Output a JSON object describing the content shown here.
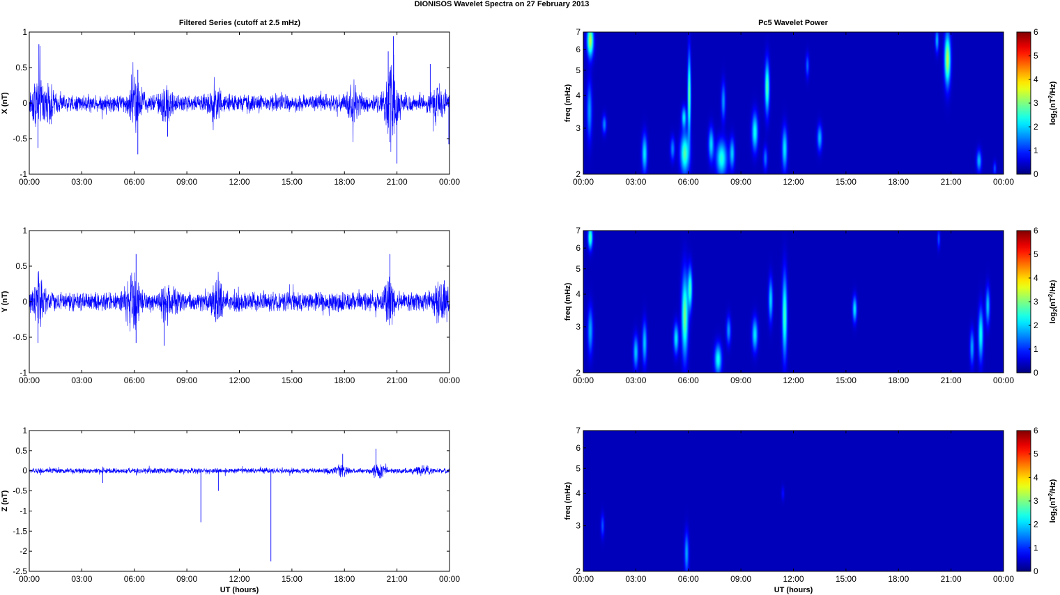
{
  "figure": {
    "title": "DIONISOS Wavelet Spectra on 27 February  2013",
    "left_column_title": "Filtered Series (cutoff at 2.5 mHz)",
    "right_column_title": "Pc5 Wavelet Power",
    "colors": {
      "trace": "#0000ff",
      "axes": "#000000",
      "colormap": "jet",
      "background_power": "#00008f"
    }
  },
  "chart_data": [
    {
      "type": "line",
      "id": "series-x",
      "ylabel": "X (nT)",
      "xlabel": "",
      "x_range_hours": [
        0,
        24
      ],
      "x_ticks": [
        "00:00",
        "03:00",
        "06:00",
        "09:00",
        "12:00",
        "15:00",
        "18:00",
        "21:00",
        "00:00"
      ],
      "ylim": [
        -1,
        1
      ],
      "y_ticks": [
        "1",
        "0.5",
        "0",
        "-0.5",
        "-1"
      ],
      "baseline_amplitude": 0.09,
      "activity": [
        {
          "t": 0.5,
          "amp": 0.22
        },
        {
          "t": 1.2,
          "amp": 0.12
        },
        {
          "t": 6.1,
          "amp": 0.25
        },
        {
          "t": 7.8,
          "amp": 0.15
        },
        {
          "t": 10.6,
          "amp": 0.12
        },
        {
          "t": 18.5,
          "amp": 0.14
        },
        {
          "t": 20.7,
          "amp": 0.42
        },
        {
          "t": 23.3,
          "amp": 0.14
        }
      ],
      "spikes": [
        {
          "t": 0.55,
          "y": 0.83
        },
        {
          "t": 0.5,
          "y": -0.63
        },
        {
          "t": 6.2,
          "y": -0.72
        },
        {
          "t": 6.2,
          "y": 0.47
        },
        {
          "t": 7.9,
          "y": -0.47
        },
        {
          "t": 20.8,
          "y": 0.94
        },
        {
          "t": 21.0,
          "y": -0.85
        },
        {
          "t": 20.5,
          "y": 0.73
        },
        {
          "t": 20.6,
          "y": -0.55
        },
        {
          "t": 22.9,
          "y": 0.55
        },
        {
          "t": 23.96,
          "y": -0.58
        }
      ]
    },
    {
      "type": "line",
      "id": "series-y",
      "ylabel": "Y (nT)",
      "xlabel": "",
      "x_range_hours": [
        0,
        24
      ],
      "x_ticks": [
        "00:00",
        "03:00",
        "06:00",
        "09:00",
        "12:00",
        "15:00",
        "18:00",
        "21:00",
        "00:00"
      ],
      "ylim": [
        -1,
        1
      ],
      "y_ticks": [
        "1",
        "0.5",
        "0",
        "-0.5",
        "-1"
      ],
      "baseline_amplitude": 0.1,
      "activity": [
        {
          "t": 0.5,
          "amp": 0.24
        },
        {
          "t": 5.9,
          "amp": 0.3
        },
        {
          "t": 7.9,
          "amp": 0.18
        },
        {
          "t": 10.8,
          "amp": 0.14
        },
        {
          "t": 20.6,
          "amp": 0.16
        },
        {
          "t": 23.5,
          "amp": 0.18
        }
      ],
      "spikes": [
        {
          "t": 0.5,
          "y": -0.58
        },
        {
          "t": 6.1,
          "y": 0.67
        },
        {
          "t": 6.1,
          "y": -0.58
        },
        {
          "t": 7.7,
          "y": -0.62
        },
        {
          "t": 20.6,
          "y": 0.67
        },
        {
          "t": 23.7,
          "y": 0.3
        }
      ]
    },
    {
      "type": "line",
      "id": "series-z",
      "ylabel": "Z (nT)",
      "xlabel": "UT (hours)",
      "x_range_hours": [
        0,
        24
      ],
      "x_ticks": [
        "00:00",
        "03:00",
        "06:00",
        "09:00",
        "12:00",
        "15:00",
        "18:00",
        "21:00",
        "00:00"
      ],
      "ylim": [
        -2.5,
        1
      ],
      "y_ticks": [
        "1",
        "0.5",
        "0",
        "-0.5",
        "-1",
        "-1.5",
        "-2",
        "-2.5"
      ],
      "baseline_amplitude": 0.05,
      "activity": [
        {
          "t": 17.8,
          "amp": 0.1
        },
        {
          "t": 20.0,
          "amp": 0.1
        },
        {
          "t": 22.5,
          "amp": 0.08
        }
      ],
      "spikes": [
        {
          "t": 9.8,
          "y": -1.28
        },
        {
          "t": 10.8,
          "y": -0.5
        },
        {
          "t": 13.8,
          "y": -2.25
        },
        {
          "t": 19.8,
          "y": 0.55
        },
        {
          "t": 17.9,
          "y": 0.42
        },
        {
          "t": 4.2,
          "y": -0.3
        }
      ]
    },
    {
      "type": "heatmap",
      "id": "power-x",
      "ylabel": "freq (mHz)",
      "xlabel": "",
      "x_range_hours": [
        0,
        24
      ],
      "x_ticks": [
        "00:00",
        "03:00",
        "06:00",
        "09:00",
        "12:00",
        "15:00",
        "18:00",
        "21:00",
        "00:00"
      ],
      "y_scale": "log",
      "ylim": [
        2,
        7
      ],
      "y_ticks": [
        "7",
        "6",
        "5",
        "4",
        "3",
        "2"
      ],
      "colorbar": {
        "label": "log2(nT2/Hz)",
        "range": [
          0,
          6
        ],
        "ticks": [
          "6",
          "5",
          "4",
          "3",
          "2",
          "1",
          "0"
        ]
      },
      "blobs": [
        {
          "t": 0.4,
          "f": 6.5,
          "dt": 0.18,
          "df": 0.14,
          "v": 3.0
        },
        {
          "t": 0.35,
          "f": 3.5,
          "dt": 0.15,
          "df": 0.25,
          "v": 1.3
        },
        {
          "t": 1.2,
          "f": 3.1,
          "dt": 0.12,
          "df": 0.08,
          "v": 1.2
        },
        {
          "t": 3.5,
          "f": 2.4,
          "dt": 0.15,
          "df": 0.16,
          "v": 1.8
        },
        {
          "t": 5.1,
          "f": 2.5,
          "dt": 0.13,
          "df": 0.1,
          "v": 1.2
        },
        {
          "t": 5.8,
          "f": 2.4,
          "dt": 0.25,
          "df": 0.17,
          "v": 2.4
        },
        {
          "t": 5.75,
          "f": 3.3,
          "dt": 0.13,
          "df": 0.09,
          "v": 1.8
        },
        {
          "t": 6.05,
          "f": 4.0,
          "dt": 0.09,
          "df": 0.35,
          "v": 2.6
        },
        {
          "t": 7.3,
          "f": 2.6,
          "dt": 0.15,
          "df": 0.14,
          "v": 1.7
        },
        {
          "t": 7.9,
          "f": 2.3,
          "dt": 0.3,
          "df": 0.15,
          "v": 2.1
        },
        {
          "t": 8.5,
          "f": 2.4,
          "dt": 0.14,
          "df": 0.13,
          "v": 1.6
        },
        {
          "t": 8.0,
          "f": 3.8,
          "dt": 0.12,
          "df": 0.16,
          "v": 1.3
        },
        {
          "t": 9.8,
          "f": 2.9,
          "dt": 0.17,
          "df": 0.16,
          "v": 2.0
        },
        {
          "t": 10.5,
          "f": 4.3,
          "dt": 0.13,
          "df": 0.22,
          "v": 2.4
        },
        {
          "t": 10.4,
          "f": 2.3,
          "dt": 0.12,
          "df": 0.1,
          "v": 1.1
        },
        {
          "t": 11.5,
          "f": 2.5,
          "dt": 0.15,
          "df": 0.18,
          "v": 1.8
        },
        {
          "t": 12.8,
          "f": 5.2,
          "dt": 0.1,
          "df": 0.1,
          "v": 1.0
        },
        {
          "t": 13.5,
          "f": 2.75,
          "dt": 0.14,
          "df": 0.11,
          "v": 1.5
        },
        {
          "t": 20.8,
          "f": 5.5,
          "dt": 0.17,
          "df": 0.22,
          "v": 3.0
        },
        {
          "t": 20.2,
          "f": 6.5,
          "dt": 0.1,
          "df": 0.1,
          "v": 1.5
        },
        {
          "t": 22.6,
          "f": 2.25,
          "dt": 0.14,
          "df": 0.09,
          "v": 1.5
        },
        {
          "t": 23.5,
          "f": 2.1,
          "dt": 0.09,
          "df": 0.06,
          "v": 0.9
        }
      ]
    },
    {
      "type": "heatmap",
      "id": "power-y",
      "ylabel": "freq (mHz)",
      "xlabel": "",
      "x_range_hours": [
        0,
        24
      ],
      "x_ticks": [
        "00:00",
        "03:00",
        "06:00",
        "09:00",
        "12:00",
        "15:00",
        "18:00",
        "21:00",
        "00:00"
      ],
      "y_scale": "log",
      "ylim": [
        2,
        7
      ],
      "y_ticks": [
        "7",
        "6",
        "5",
        "4",
        "3",
        "2"
      ],
      "colorbar": {
        "label": "log2(nT2/Hz)",
        "range": [
          0,
          6
        ],
        "ticks": [
          "6",
          "5",
          "4",
          "3",
          "2",
          "1",
          "0"
        ]
      },
      "blobs": [
        {
          "t": 0.4,
          "f": 6.6,
          "dt": 0.13,
          "df": 0.1,
          "v": 2.4
        },
        {
          "t": 0.4,
          "f": 2.9,
          "dt": 0.15,
          "df": 0.2,
          "v": 1.4
        },
        {
          "t": 3.0,
          "f": 2.4,
          "dt": 0.14,
          "df": 0.14,
          "v": 1.6
        },
        {
          "t": 3.5,
          "f": 2.6,
          "dt": 0.13,
          "df": 0.18,
          "v": 1.6
        },
        {
          "t": 5.3,
          "f": 2.7,
          "dt": 0.14,
          "df": 0.13,
          "v": 1.8
        },
        {
          "t": 5.8,
          "f": 3.3,
          "dt": 0.18,
          "df": 0.35,
          "v": 2.6
        },
        {
          "t": 6.1,
          "f": 4.2,
          "dt": 0.12,
          "df": 0.18,
          "v": 2.2
        },
        {
          "t": 7.7,
          "f": 2.25,
          "dt": 0.2,
          "df": 0.13,
          "v": 2.0
        },
        {
          "t": 9.8,
          "f": 2.8,
          "dt": 0.16,
          "df": 0.14,
          "v": 1.8
        },
        {
          "t": 10.7,
          "f": 3.8,
          "dt": 0.12,
          "df": 0.18,
          "v": 1.7
        },
        {
          "t": 11.5,
          "f": 3.3,
          "dt": 0.14,
          "df": 0.35,
          "v": 2.3
        },
        {
          "t": 8.3,
          "f": 2.9,
          "dt": 0.13,
          "df": 0.12,
          "v": 1.3
        },
        {
          "t": 15.5,
          "f": 3.5,
          "dt": 0.12,
          "df": 0.11,
          "v": 1.8
        },
        {
          "t": 22.2,
          "f": 2.5,
          "dt": 0.12,
          "df": 0.15,
          "v": 1.4
        },
        {
          "t": 22.7,
          "f": 2.8,
          "dt": 0.14,
          "df": 0.22,
          "v": 2.0
        },
        {
          "t": 23.1,
          "f": 3.6,
          "dt": 0.12,
          "df": 0.16,
          "v": 1.6
        },
        {
          "t": 20.3,
          "f": 6.5,
          "dt": 0.08,
          "df": 0.08,
          "v": 0.9
        }
      ]
    },
    {
      "type": "heatmap",
      "id": "power-z",
      "ylabel": "freq (mHz)",
      "xlabel": "UT (hours)",
      "x_range_hours": [
        0,
        24
      ],
      "x_ticks": [
        "00:00",
        "03:00",
        "06:00",
        "09:00",
        "12:00",
        "15:00",
        "18:00",
        "21:00",
        "00:00"
      ],
      "y_scale": "log",
      "ylim": [
        2,
        7
      ],
      "y_ticks": [
        "7",
        "6",
        "5",
        "4",
        "3",
        "2"
      ],
      "colorbar": {
        "label": "log2(nT2/Hz)",
        "range": [
          0,
          6
        ],
        "ticks": [
          "6",
          "5",
          "4",
          "3",
          "2",
          "1",
          "0"
        ]
      },
      "blobs": [
        {
          "t": 1.1,
          "f": 3.0,
          "dt": 0.1,
          "df": 0.1,
          "v": 0.9
        },
        {
          "t": 5.9,
          "f": 2.35,
          "dt": 0.12,
          "df": 0.18,
          "v": 1.4
        },
        {
          "t": 11.4,
          "f": 4.0,
          "dt": 0.08,
          "df": 0.06,
          "v": 0.5
        }
      ]
    }
  ]
}
